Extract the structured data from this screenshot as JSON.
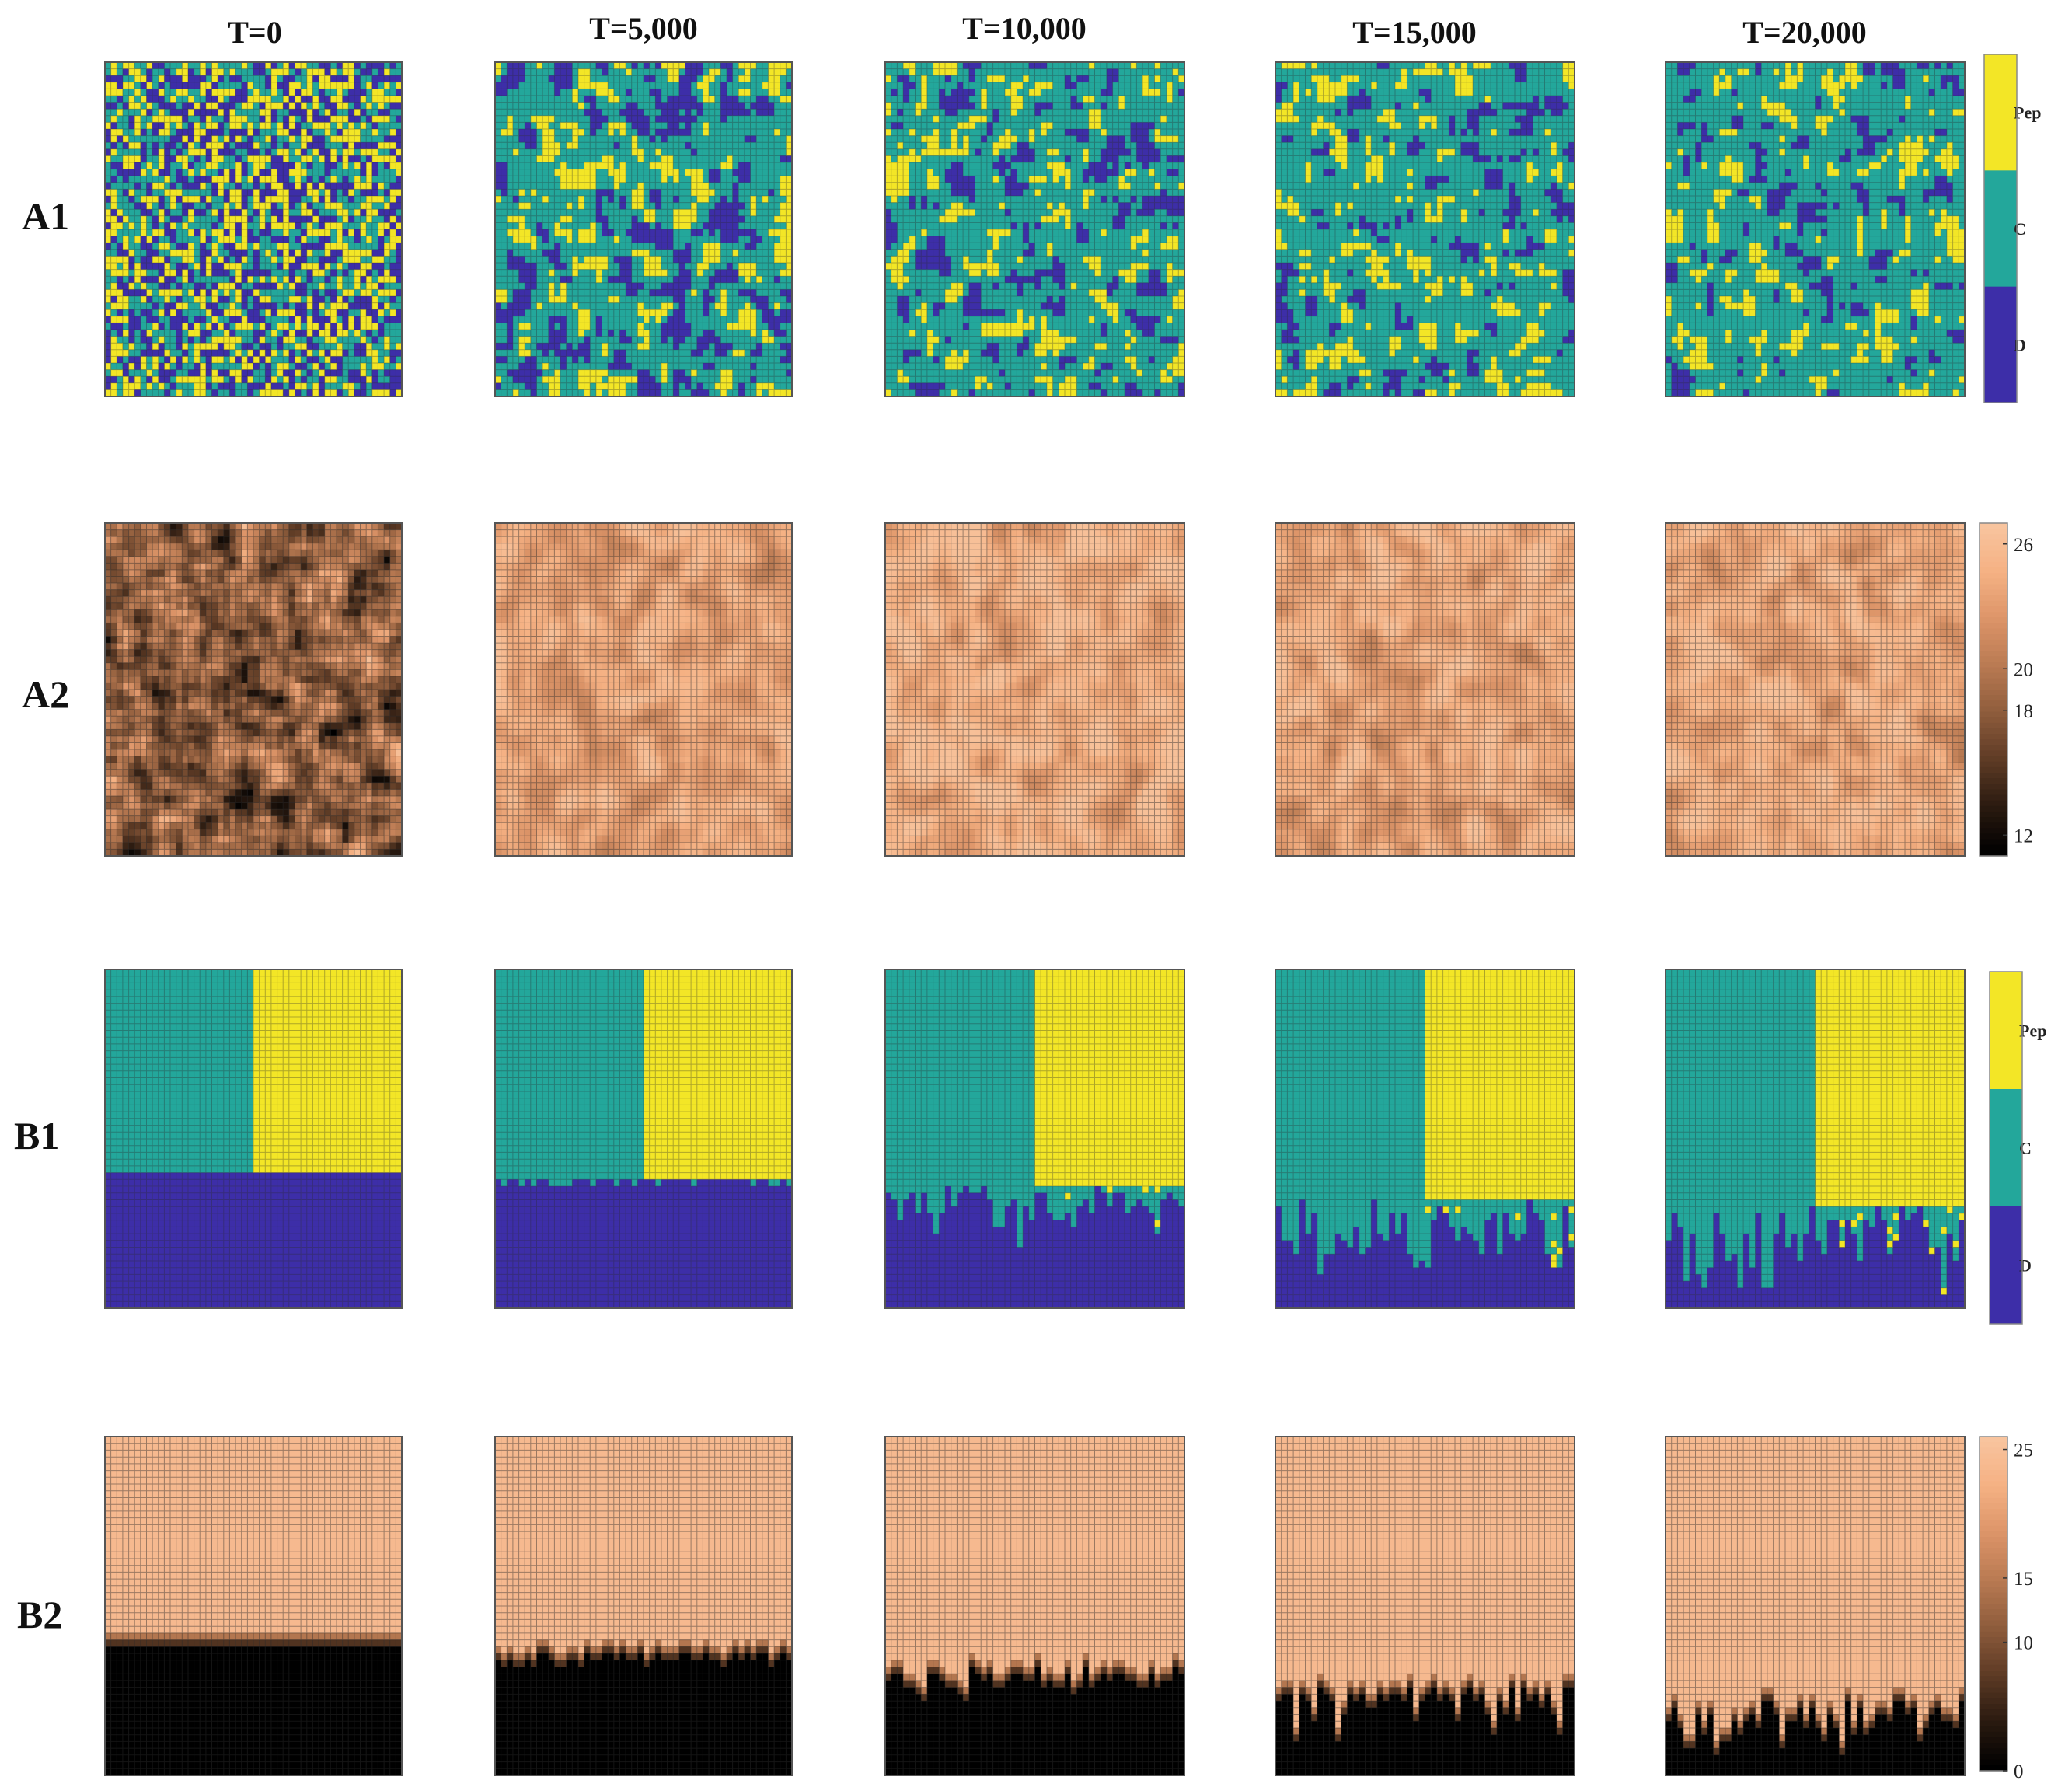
{
  "chart_data": {
    "type": "heatmap",
    "column_titles": [
      "T=0",
      "T=5,000",
      "T=10,000",
      "T=15,000",
      "T=20,000"
    ],
    "rows": [
      {
        "label": "A1",
        "kind": "strategy",
        "panels": [
          {
            "t": 0,
            "fraction": {
              "Pep": 0.33,
              "C": 0.34,
              "D": 0.33
            }
          },
          {
            "t": 5000,
            "fraction": {
              "Pep": 0.18,
              "C": 0.6,
              "D": 0.22
            }
          },
          {
            "t": 10000,
            "fraction": {
              "Pep": 0.16,
              "C": 0.68,
              "D": 0.16
            }
          },
          {
            "t": 15000,
            "fraction": {
              "Pep": 0.16,
              "C": 0.72,
              "D": 0.12
            }
          },
          {
            "t": 20000,
            "fraction": {
              "Pep": 0.15,
              "C": 0.74,
              "D": 0.11
            }
          }
        ]
      },
      {
        "label": "A2",
        "kind": "payoff",
        "panels": [
          {
            "t": 0,
            "mean": 19
          },
          {
            "t": 5000,
            "mean": 23
          },
          {
            "t": 10000,
            "mean": 24
          },
          {
            "t": 15000,
            "mean": 23.5
          },
          {
            "t": 20000,
            "mean": 23.5
          }
        ]
      },
      {
        "label": "B1",
        "kind": "strategy",
        "panels": [
          {
            "t": 0,
            "boundary_fraction": 0.6,
            "roughness": 0.0
          },
          {
            "t": 5000,
            "boundary_fraction": 0.61,
            "roughness": 0.03
          },
          {
            "t": 10000,
            "boundary_fraction": 0.64,
            "roughness": 0.09
          },
          {
            "t": 15000,
            "boundary_fraction": 0.68,
            "roughness": 0.15
          },
          {
            "t": 20000,
            "boundary_fraction": 0.7,
            "roughness": 0.17
          }
        ]
      },
      {
        "label": "B2",
        "kind": "payoff",
        "panels": [
          {
            "t": 0,
            "boundary_fraction": 0.6,
            "roughness": 0.0
          },
          {
            "t": 5000,
            "boundary_fraction": 0.62,
            "roughness": 0.03
          },
          {
            "t": 10000,
            "boundary_fraction": 0.66,
            "roughness": 0.07
          },
          {
            "t": 15000,
            "boundary_fraction": 0.71,
            "roughness": 0.11
          },
          {
            "t": 20000,
            "boundary_fraction": 0.76,
            "roughness": 0.12
          }
        ]
      }
    ],
    "grid_size": [
      50,
      50
    ],
    "strategy_colorbar": {
      "categories": [
        "Pep",
        "C",
        "D"
      ],
      "colors": {
        "Pep": "#f3e626",
        "C": "#23a79b",
        "D": "#3d2ea8",
        "grid": "#2b2b2b"
      }
    },
    "payoff_colorbar_A": {
      "ticks": [
        "26",
        "20",
        "18",
        "12"
      ],
      "tick_values": [
        26,
        20,
        18,
        12
      ],
      "range": [
        11,
        27
      ]
    },
    "payoff_colorbar_B": {
      "ticks": [
        "25",
        "15",
        "10",
        "0"
      ],
      "tick_values": [
        25,
        15,
        10,
        0
      ],
      "range": [
        0,
        26
      ]
    },
    "copper_colormap": [
      "#000000",
      "#2a1a10",
      "#5e3b25",
      "#8e5c3c",
      "#b97a52",
      "#dc9468",
      "#f5b183",
      "#f8c49e"
    ]
  }
}
